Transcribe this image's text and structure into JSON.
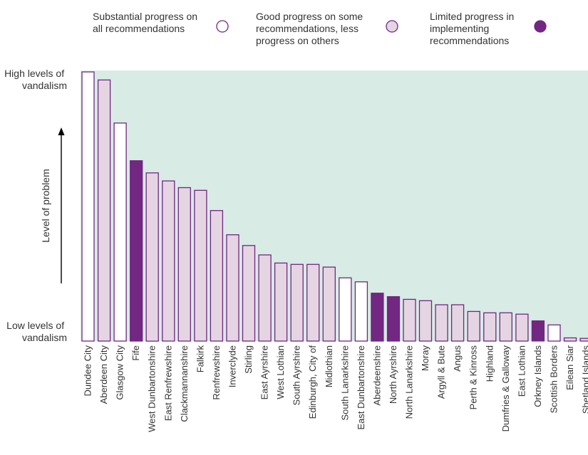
{
  "legend": [
    {
      "key": "substantial",
      "lines": [
        "Substantial progress on",
        "all recommendations"
      ],
      "color": "#ffffff"
    },
    {
      "key": "good",
      "lines": [
        "Good progress on some",
        "recommendations, less",
        "progress on others"
      ],
      "color": "#e5d5e3"
    },
    {
      "key": "limited",
      "lines": [
        "Limited progress in",
        "implementing",
        "recommendations"
      ],
      "color": "#722782"
    }
  ],
  "y_axis": {
    "top_label": [
      "High levels of",
      "vandalism"
    ],
    "bottom_label": [
      "Low levels of",
      "vandalism"
    ],
    "title": "Level of problem"
  },
  "colors": {
    "plot_bg": "#d8ebe5",
    "bar_border": "#722782",
    "substantial": "#ffffff",
    "good": "#e5d5e3",
    "limited": "#722782"
  },
  "chart_data": {
    "type": "bar",
    "ylim": [
      0,
      100
    ],
    "categories": [
      "Dundee City",
      "Aberdeen City",
      "Glasgow City",
      "Fife",
      "West Dunbartonshire",
      "East Renfrewshire",
      "Clackmannanshire",
      "Falkirk",
      "Renfrewshire",
      "Inverclyde",
      "Stirling",
      "East Ayrshire",
      "West Lothian",
      "South Ayrshire",
      "Edinburgh, City of",
      "Midlothian",
      "South Lanarkshire",
      "East Dunbartonshire",
      "Aberdeenshire",
      "North Ayrshire",
      "North Lanarkshire",
      "Moray",
      "Argyll & Bute",
      "Angus",
      "Perth & Kinross",
      "Highland",
      "Dumfries & Galloway",
      "East Lothian",
      "Orkney Islands",
      "Scottish Borders",
      "Eilean Siar",
      "Shetland Islands"
    ],
    "values": [
      100,
      97,
      81,
      67,
      62.5,
      59.5,
      57,
      56,
      48.5,
      39.5,
      35.5,
      32,
      29,
      28.5,
      28.5,
      27.5,
      23.5,
      22,
      17.8,
      16.5,
      15.5,
      15,
      13.5,
      13.5,
      11,
      10.5,
      10.5,
      10,
      7.5,
      6,
      1.2,
      1
    ],
    "progress": [
      "substantial",
      "good",
      "substantial",
      "limited",
      "good",
      "good",
      "good",
      "good",
      "good",
      "good",
      "good",
      "good",
      "good",
      "good",
      "good",
      "good",
      "substantial",
      "substantial",
      "limited",
      "limited",
      "good",
      "good",
      "good",
      "good",
      "good",
      "good",
      "good",
      "good",
      "limited",
      "substantial",
      "good",
      "good"
    ]
  }
}
